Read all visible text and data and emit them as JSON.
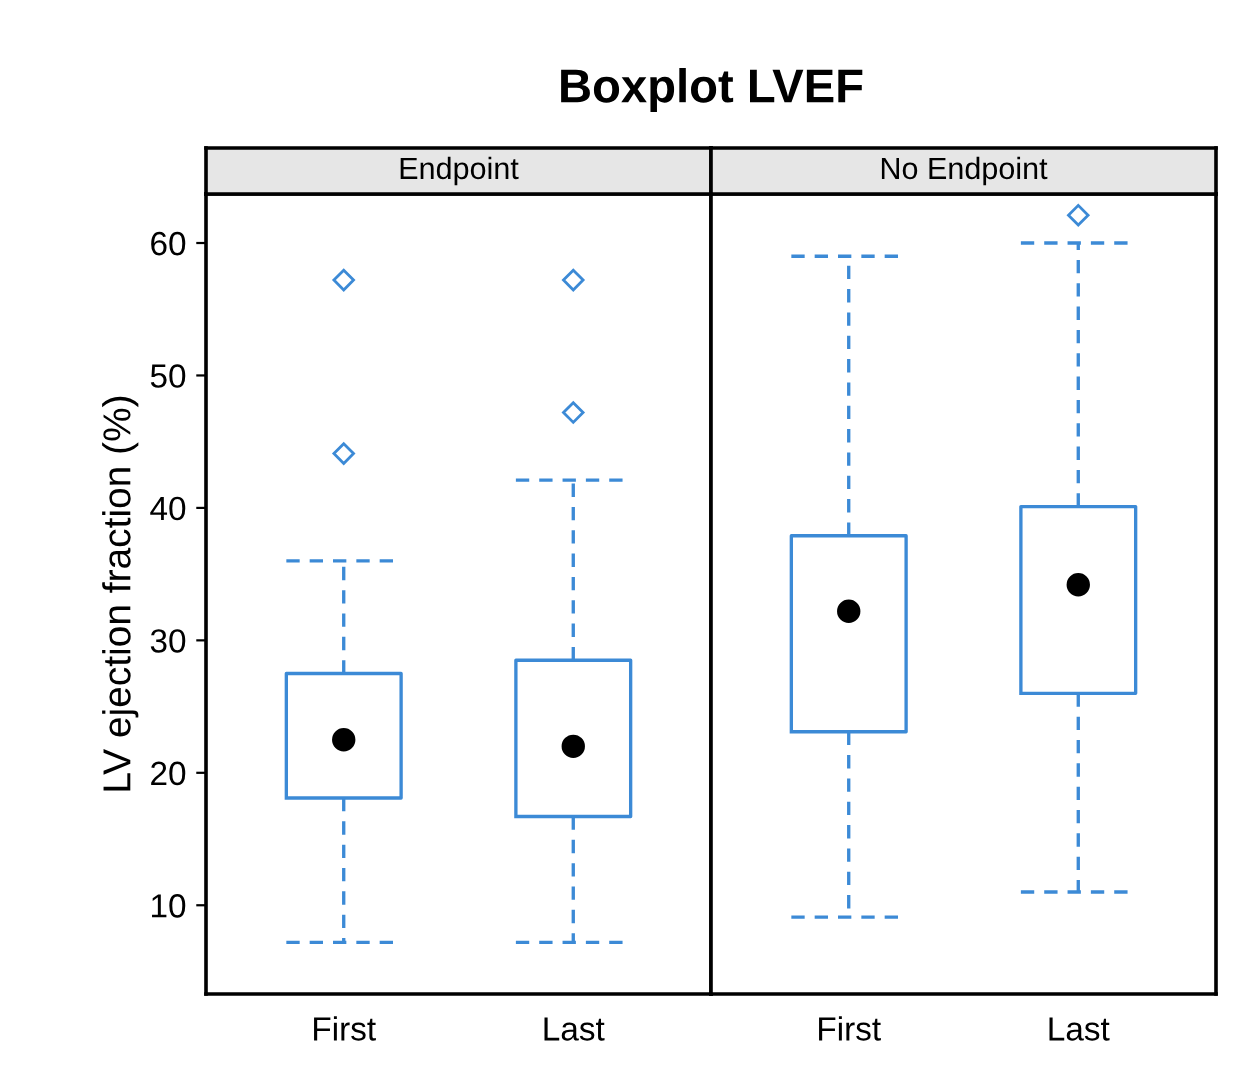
{
  "chart_data": [
    {
      "type": "box",
      "title": "Boxplot LVEF",
      "subtitle": "Endpoint",
      "ylabel": "LV ejection fraction (%)",
      "categories": [
        "First",
        "Last"
      ],
      "color": "#3c8ad6",
      "boxes": [
        {
          "low": 7.2,
          "q1": 18.1,
          "median": 22.5,
          "q3": 27.5,
          "high": 36.0,
          "outliers": [
            44.1,
            57.2
          ]
        },
        {
          "low": 7.2,
          "q1": 16.7,
          "median": 22.0,
          "q3": 28.5,
          "high": 42.1,
          "outliers": [
            47.2,
            57.2
          ]
        }
      ],
      "ylim": [
        3.3,
        63.7
      ],
      "yticks": [
        10,
        20,
        30,
        40,
        50,
        60
      ],
      "grid": false
    },
    {
      "type": "box",
      "subtitle": "No Endpoint",
      "categories": [
        "First",
        "Last"
      ],
      "color": "#3c8ad6",
      "boxes": [
        {
          "low": 9.1,
          "q1": 23.1,
          "median": 32.2,
          "q3": 37.9,
          "high": 59.0
        },
        {
          "low": 11.0,
          "q1": 26.0,
          "median": 34.2,
          "q3": 40.1,
          "high": 60.0,
          "outliers": [
            62.1
          ]
        }
      ],
      "ylim": [
        3.3,
        63.7
      ],
      "yticks": [
        10,
        20,
        30,
        40,
        50,
        60
      ],
      "tick_labels": "x",
      "grid": false
    }
  ]
}
